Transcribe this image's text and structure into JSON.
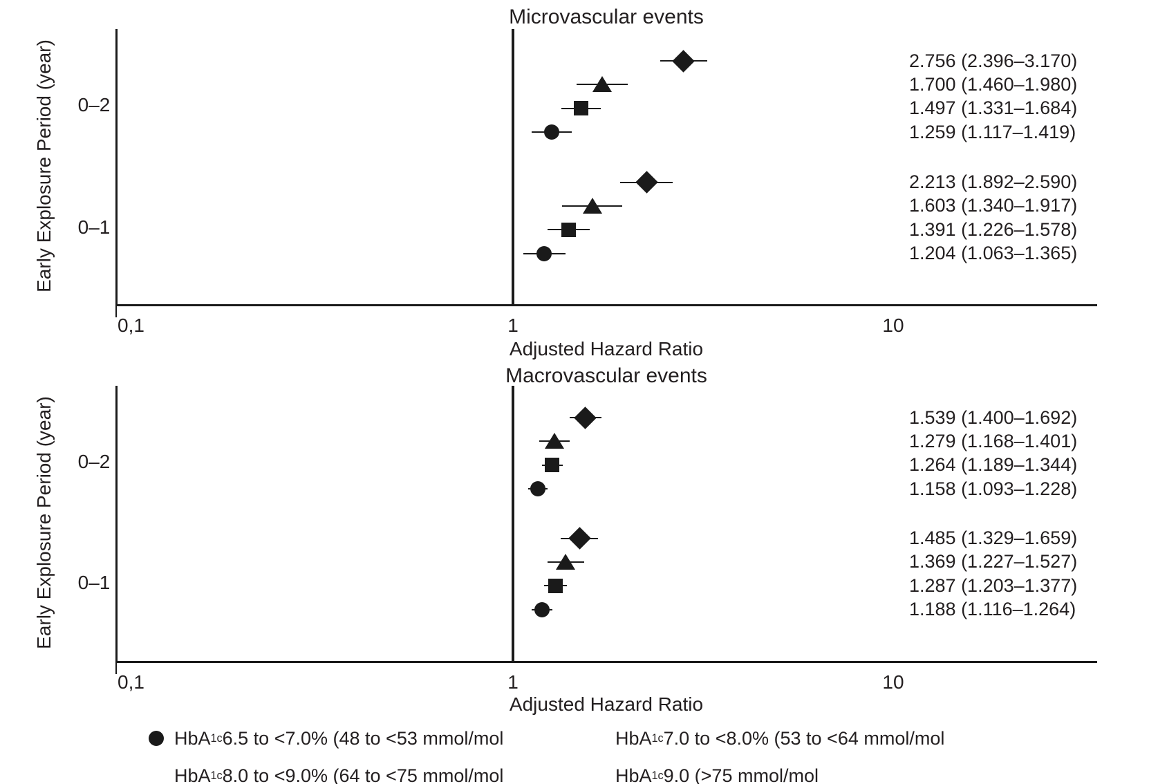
{
  "page": {
    "background": "#ffffff",
    "text_color": "#231f20",
    "line_color": "#1a1a1a"
  },
  "chart_data": {
    "type": "scatter",
    "variant": "forest-plot",
    "x_axis": {
      "label": "Adjusted Hazard Ratio",
      "scale": "log10",
      "tick_labels": [
        "0,1",
        "1",
        "10"
      ],
      "tick_values": [
        0.1,
        1,
        10
      ],
      "grid": false
    },
    "y_axis": {
      "label": "Early Explosure Period (year)"
    },
    "reference_line_value": 1,
    "series_key": {
      "circle": "HbA1c 6.5 to <7.0% (48 to <53 mmol/mol",
      "square": "HbA1c 7.0 to <8.0% (53 to <64 mmol/mol",
      "triangle": "HbA1c 8.0 to <9.0% (64 to <75 mmol/mol",
      "diamond": "HbA1c 9.0 (>75 mmol/mol"
    },
    "panels": [
      {
        "title": "Microvascular events",
        "groups": [
          {
            "category": "0–2",
            "rows": [
              {
                "marker": "diamond",
                "value": 2.756,
                "ci_low": 2.396,
                "ci_high": 3.17,
                "label": "2.756 (2.396–3.170)"
              },
              {
                "marker": "triangle",
                "value": 1.7,
                "ci_low": 1.46,
                "ci_high": 1.98,
                "label": "1.700 (1.460–1.980)"
              },
              {
                "marker": "square",
                "value": 1.497,
                "ci_low": 1.331,
                "ci_high": 1.684,
                "label": "1.497 (1.331–1.684)"
              },
              {
                "marker": "circle",
                "value": 1.259,
                "ci_low": 1.117,
                "ci_high": 1.419,
                "label": "1.259 (1.117–1.419)"
              }
            ]
          },
          {
            "category": "0–1",
            "rows": [
              {
                "marker": "diamond",
                "value": 2.213,
                "ci_low": 1.892,
                "ci_high": 2.59,
                "label": "2.213 (1.892–2.590)"
              },
              {
                "marker": "triangle",
                "value": 1.603,
                "ci_low": 1.34,
                "ci_high": 1.917,
                "label": "1.603 (1.340–1.917)"
              },
              {
                "marker": "square",
                "value": 1.391,
                "ci_low": 1.226,
                "ci_high": 1.578,
                "label": "1.391 (1.226–1.578)"
              },
              {
                "marker": "circle",
                "value": 1.204,
                "ci_low": 1.063,
                "ci_high": 1.365,
                "label": "1.204 (1.063–1.365)"
              }
            ]
          }
        ]
      },
      {
        "title": "Macrovascular events",
        "groups": [
          {
            "category": "0–2",
            "rows": [
              {
                "marker": "diamond",
                "value": 1.539,
                "ci_low": 1.4,
                "ci_high": 1.692,
                "label": "1.539 (1.400–1.692)"
              },
              {
                "marker": "triangle",
                "value": 1.279,
                "ci_low": 1.168,
                "ci_high": 1.401,
                "label": "1.279 (1.168–1.401)"
              },
              {
                "marker": "square",
                "value": 1.264,
                "ci_low": 1.189,
                "ci_high": 1.344,
                "label": "1.264 (1.189–1.344)"
              },
              {
                "marker": "circle",
                "value": 1.158,
                "ci_low": 1.093,
                "ci_high": 1.228,
                "label": "1.158 (1.093–1.228)"
              }
            ]
          },
          {
            "category": "0–1",
            "rows": [
              {
                "marker": "diamond",
                "value": 1.485,
                "ci_low": 1.329,
                "ci_high": 1.659,
                "label": "1.485 (1.329–1.659)"
              },
              {
                "marker": "triangle",
                "value": 1.369,
                "ci_low": 1.227,
                "ci_high": 1.527,
                "label": "1.369 (1.227–1.527)"
              },
              {
                "marker": "square",
                "value": 1.287,
                "ci_low": 1.203,
                "ci_high": 1.377,
                "label": "1.287 (1.203–1.377)"
              },
              {
                "marker": "circle",
                "value": 1.188,
                "ci_low": 1.116,
                "ci_high": 1.264,
                "label": "1.188 (1.116–1.264)"
              }
            ]
          }
        ]
      }
    ],
    "legend": {
      "items": [
        {
          "marker": "circle",
          "prefix": "HbA",
          "sub": "1c",
          "text": " 6.5 to <7.0% (48 to <53 mmol/mol"
        },
        {
          "marker": "",
          "prefix": "HbA",
          "sub": "1c",
          "text": " 7.0 to <8.0% (53 to <64 mmol/mol"
        },
        {
          "marker": "",
          "prefix": "HbA",
          "sub": "1c",
          "text": " 8.0 to <9.0% (64 to <75 mmol/mol"
        },
        {
          "marker": "",
          "prefix": "HbA",
          "sub": "1c",
          "text": " 9.0 (>75 mmol/mol"
        }
      ]
    }
  }
}
